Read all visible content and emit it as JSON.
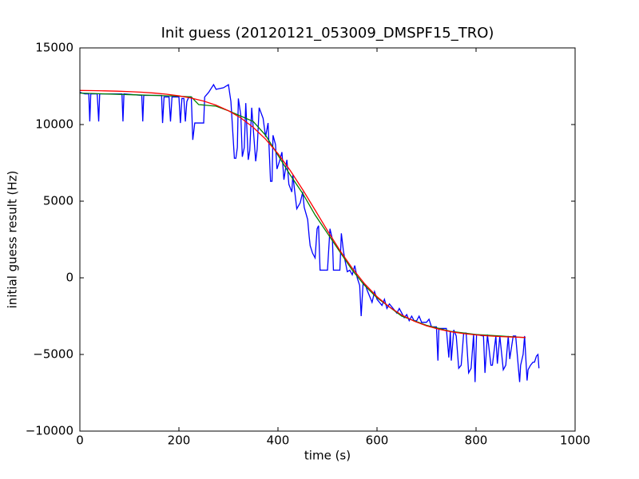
{
  "chart_data": {
    "type": "line",
    "title": "Init guess (20120121_053009_DMSPF15_TRO)",
    "x_label": "time (s)",
    "y_label": "initial guess result (Hz)",
    "xlim": [
      0,
      1000
    ],
    "xticks": [
      0,
      200,
      400,
      600,
      800,
      1000
    ],
    "ylim": [
      -10000,
      15000
    ],
    "yticks": [
      {
        "value": -10000,
        "label": "−10000"
      },
      {
        "value": -5000,
        "label": "−5000"
      },
      0,
      5000,
      10000,
      15000
    ],
    "grid": false,
    "series": [
      {
        "color": "#0000ff",
        "x": [
          0,
          10,
          18,
          20,
          22,
          35,
          38,
          40,
          85,
          87,
          89,
          125,
          127,
          129,
          165,
          167,
          170,
          180,
          183,
          186,
          200,
          203,
          206,
          210,
          213,
          216,
          220,
          225,
          228,
          232,
          250,
          252,
          260,
          270,
          275,
          290,
          300,
          305,
          312,
          315,
          318,
          320,
          325,
          328,
          332,
          335,
          340,
          343,
          347,
          355,
          358,
          362,
          370,
          375,
          380,
          385,
          388,
          390,
          395,
          398,
          403,
          408,
          412,
          418,
          422,
          428,
          430,
          438,
          445,
          450,
          453,
          460,
          463,
          465,
          470,
          475,
          479,
          482,
          485,
          500,
          505,
          510,
          512,
          525,
          528,
          532,
          535,
          540,
          545,
          550,
          555,
          560,
          565,
          568,
          572,
          577,
          580,
          585,
          590,
          595,
          600,
          610,
          615,
          620,
          625,
          635,
          640,
          645,
          650,
          655,
          660,
          665,
          670,
          675,
          680,
          685,
          690,
          700,
          705,
          710,
          720,
          723,
          725,
          740,
          745,
          748,
          750,
          755,
          760,
          765,
          770,
          775,
          780,
          785,
          790,
          795,
          798,
          801,
          815,
          818,
          823,
          830,
          833,
          840,
          843,
          848,
          855,
          860,
          865,
          868,
          875,
          880,
          888,
          890,
          895,
          898,
          903,
          905,
          910,
          915,
          918,
          922,
          925,
          927
        ],
        "values": [
          12100,
          12000,
          12000,
          10200,
          12000,
          12000,
          10200,
          12000,
          12000,
          10200,
          12000,
          11900,
          10200,
          11900,
          11900,
          10100,
          11800,
          11800,
          10200,
          11800,
          11800,
          10100,
          11700,
          11700,
          10200,
          11500,
          11800,
          11800,
          9000,
          10100,
          10100,
          11800,
          12100,
          12600,
          12300,
          12400,
          12600,
          11500,
          7800,
          7800,
          8500,
          11700,
          10600,
          7900,
          8500,
          11400,
          7700,
          8300,
          11100,
          7600,
          8400,
          11100,
          10400,
          9200,
          10100,
          6300,
          6300,
          9300,
          8700,
          7100,
          7600,
          8200,
          6400,
          7700,
          6100,
          5600,
          6700,
          4500,
          4900,
          5600,
          4600,
          3800,
          2700,
          2100,
          1600,
          1300,
          3200,
          3400,
          500,
          500,
          3200,
          2500,
          500,
          500,
          2900,
          1800,
          1200,
          400,
          500,
          200,
          800,
          0,
          -500,
          -2500,
          -300,
          -500,
          -800,
          -1200,
          -1600,
          -900,
          -1400,
          -1800,
          -1400,
          -2000,
          -1700,
          -2100,
          -2300,
          -2000,
          -2300,
          -2600,
          -2400,
          -2800,
          -2500,
          -2800,
          -2800,
          -2500,
          -2900,
          -2900,
          -2700,
          -3200,
          -3200,
          -5400,
          -3300,
          -3300,
          -5200,
          -3500,
          -5400,
          -3400,
          -3800,
          -5900,
          -5700,
          -3600,
          -3600,
          -6200,
          -5900,
          -3700,
          -6800,
          -3700,
          -3800,
          -6200,
          -3700,
          -5700,
          -5700,
          -3800,
          -5600,
          -3800,
          -6000,
          -5700,
          -3800,
          -5300,
          -3800,
          -3800,
          -6800,
          -5700,
          -5000,
          -3800,
          -6700,
          -6000,
          -5700,
          -5500,
          -5500,
          -5100,
          -5000,
          -5900
        ]
      },
      {
        "color": "#008000",
        "x": [
          0,
          50,
          100,
          150,
          200,
          225,
          240,
          275,
          300,
          350,
          375,
          400,
          425,
          450,
          475,
          500,
          525,
          550,
          575,
          600,
          650,
          700,
          750,
          800,
          850,
          900
        ],
        "values": [
          12050,
          12000,
          11950,
          11900,
          11850,
          11800,
          11300,
          11200,
          10900,
          10200,
          9300,
          8000,
          6700,
          5500,
          4100,
          2900,
          1700,
          500,
          -500,
          -1300,
          -2500,
          -3100,
          -3500,
          -3700,
          -3800,
          -3900
        ]
      },
      {
        "color": "#ff0000",
        "x": [
          0,
          25,
          50,
          75,
          100,
          125,
          150,
          175,
          200,
          225,
          250,
          275,
          300,
          325,
          350,
          375,
          400,
          425,
          450,
          475,
          500,
          525,
          550,
          575,
          600,
          625,
          650,
          675,
          700,
          725,
          750,
          775,
          800,
          825,
          850,
          875,
          900
        ],
        "values": [
          12223,
          12212,
          12198,
          12177,
          12149,
          12109,
          12053,
          11977,
          11872,
          11727,
          11529,
          11261,
          10903,
          10430,
          9817,
          9045,
          8102,
          6994,
          5749,
          4420,
          3075,
          1791,
          623,
          -389,
          -1229,
          -1902,
          -2428,
          -2830,
          -3131,
          -3355,
          -3519,
          -3639,
          -3726,
          -3789,
          -3834,
          -3867,
          -3890
        ]
      }
    ]
  }
}
